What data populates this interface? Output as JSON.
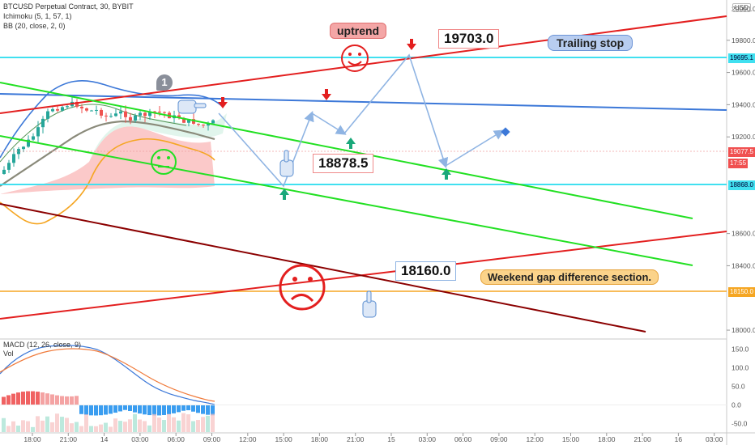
{
  "header": {
    "symbol_line": "BTCUSD Perpetual Contract, 30, BYBIT",
    "ichimoku_line": "Ichimoku (5, 1, 57, 1)",
    "bb_line": "BB (20, close, 2, 0)",
    "macd_line": "MACD (12, 26, close, 9)",
    "vol_line": "Vol",
    "currency": "USD"
  },
  "price_axis": {
    "ticks": [
      "19800.0",
      "19600.0",
      "19400.0",
      "19200.0",
      "18600.0",
      "18400.0",
      "18000.0"
    ],
    "tags": {
      "top": "20000.0",
      "cyan_top": "19695.1",
      "current": "19077.5",
      "timer": "17:55",
      "cyan_bottom": "18868.0",
      "orange": "18150.0"
    }
  },
  "macd_axis": {
    "ticks": [
      "150.0",
      "100.0",
      "50.0",
      "0.0",
      "-50.0"
    ]
  },
  "time_axis": {
    "ticks": [
      "18:00",
      "21:00",
      "14",
      "03:00",
      "06:00",
      "09:00",
      "12:00",
      "15:00",
      "18:00",
      "21:00",
      "15",
      "03:00",
      "06:00",
      "09:00",
      "12:00",
      "15:00",
      "18:00",
      "21:00",
      "16",
      "03:00"
    ]
  },
  "annotations": {
    "uptrend": "uptrend",
    "price_high": "19703.0",
    "trailing_stop": "Trailing stop",
    "price_mid": "18878.5",
    "price_low": "18160.0",
    "weekend_gap": "Weekend gap difference section.",
    "marker": "1"
  },
  "colors": {
    "cyan": "#40e0f0",
    "red": "#e31f1f",
    "green": "#22e022",
    "blue": "#3c78d8",
    "darkred": "#8b0000",
    "orange": "#f5a623",
    "arrow": "#8fb4e3"
  },
  "chart_data": {
    "type": "line",
    "title": "BTCUSD Perpetual Contract, 30, BYBIT",
    "xlabel": "",
    "ylabel": "USD",
    "ylim": [
      17950,
      20050
    ],
    "horizontal_levels": [
      {
        "value": 19695.1
      },
      {
        "value": 18868.0
      },
      {
        "value": 18150.0
      }
    ],
    "price_labels": [
      19703.0,
      18878.5,
      18160.0
    ],
    "macd_ylim": [
      -75,
      175
    ]
  }
}
